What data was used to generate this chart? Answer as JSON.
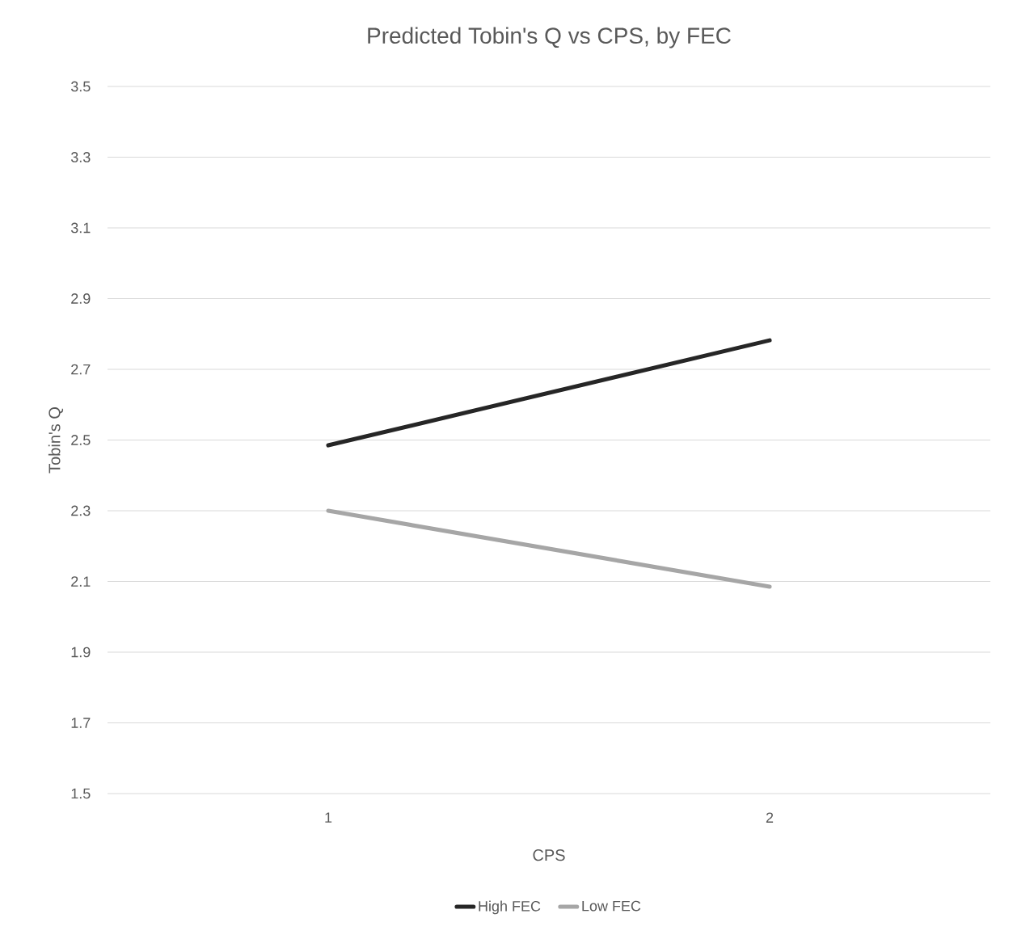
{
  "chart_data": {
    "type": "line",
    "title": "Predicted Tobin's Q vs CPS, by FEC",
    "xlabel": "CPS",
    "ylabel": "Tobin's Q",
    "categories": [
      "1",
      "2"
    ],
    "series": [
      {
        "name": "High FEC",
        "color": "#262626",
        "values": [
          2.485,
          2.782
        ]
      },
      {
        "name": "Low FEC",
        "color": "#a6a6a6",
        "values": [
          2.3,
          2.085
        ]
      }
    ],
    "ylim": [
      1.5,
      3.5
    ],
    "yticks": [
      1.5,
      1.7,
      1.9,
      2.1,
      2.3,
      2.5,
      2.7,
      2.9,
      3.1,
      3.3,
      3.5
    ],
    "grid": "y",
    "legend": "bottom",
    "marker": "none",
    "line_style": "solid"
  }
}
